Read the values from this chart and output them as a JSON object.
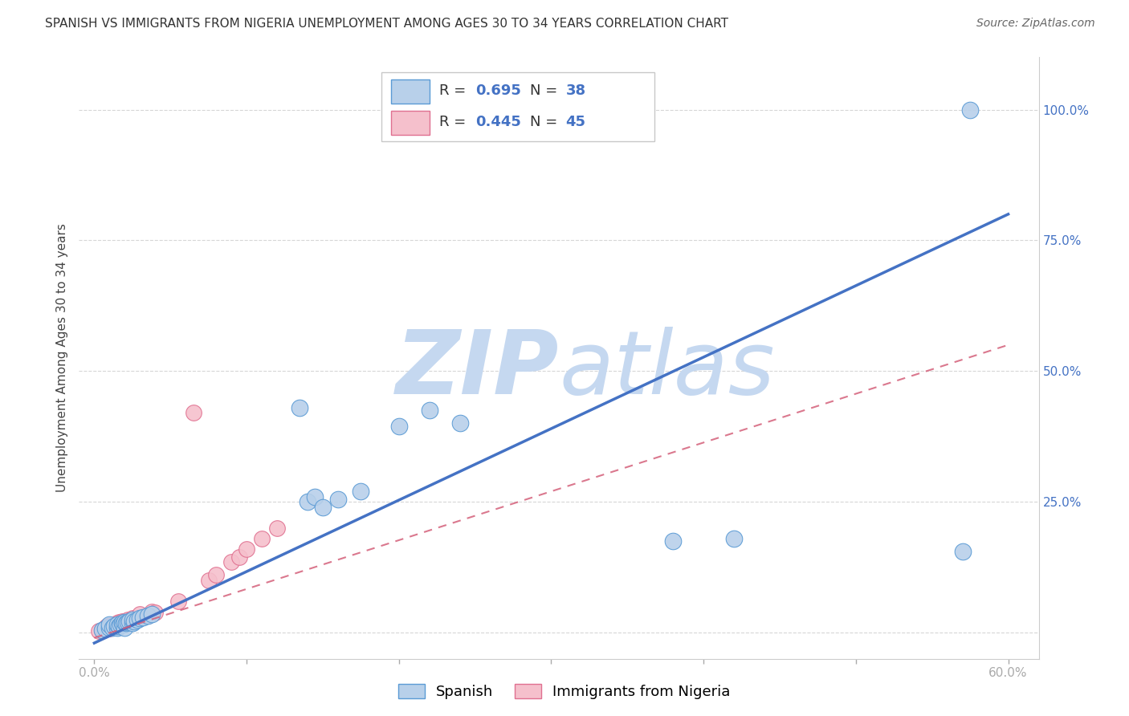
{
  "title": "SPANISH VS IMMIGRANTS FROM NIGERIA UNEMPLOYMENT AMONG AGES 30 TO 34 YEARS CORRELATION CHART",
  "source": "Source: ZipAtlas.com",
  "ylabel": "Unemployment Among Ages 30 to 34 years",
  "spanish_R": 0.695,
  "spanish_N": 38,
  "nigeria_R": 0.445,
  "nigeria_N": 45,
  "spanish_color": "#b8d0ea",
  "nigeria_color": "#f5c0cc",
  "spanish_edge_color": "#5b9bd5",
  "nigeria_edge_color": "#e07090",
  "spanish_line_color": "#4472c4",
  "nigeria_line_color": "#d4607a",
  "watermark_color": "#c5d8f0",
  "legend_label_spanish": "Spanish",
  "legend_label_nigeria": "Immigrants from Nigeria",
  "legend_R_color": "#333333",
  "legend_N_color": "#4472c4",
  "spanish_x": [
    0.005,
    0.007,
    0.01,
    0.01,
    0.012,
    0.013,
    0.015,
    0.015,
    0.016,
    0.017,
    0.018,
    0.019,
    0.02,
    0.02,
    0.021,
    0.022,
    0.023,
    0.025,
    0.025,
    0.026,
    0.028,
    0.03,
    0.032,
    0.035,
    0.038,
    0.14,
    0.145,
    0.15,
    0.16,
    0.175,
    0.2,
    0.22,
    0.24,
    0.38,
    0.42,
    0.135,
    0.57,
    0.575
  ],
  "spanish_y": [
    0.005,
    0.008,
    0.01,
    0.015,
    0.01,
    0.012,
    0.01,
    0.015,
    0.012,
    0.015,
    0.018,
    0.015,
    0.01,
    0.02,
    0.018,
    0.02,
    0.022,
    0.018,
    0.025,
    0.022,
    0.025,
    0.028,
    0.03,
    0.032,
    0.035,
    0.25,
    0.26,
    0.24,
    0.255,
    0.27,
    0.395,
    0.425,
    0.4,
    0.175,
    0.18,
    0.43,
    0.155,
    1.0
  ],
  "nigeria_x": [
    0.003,
    0.005,
    0.006,
    0.007,
    0.007,
    0.008,
    0.008,
    0.009,
    0.01,
    0.01,
    0.01,
    0.011,
    0.012,
    0.012,
    0.013,
    0.014,
    0.014,
    0.015,
    0.015,
    0.016,
    0.016,
    0.017,
    0.018,
    0.018,
    0.02,
    0.02,
    0.022,
    0.022,
    0.025,
    0.025,
    0.028,
    0.03,
    0.03,
    0.035,
    0.038,
    0.04,
    0.055,
    0.075,
    0.08,
    0.09,
    0.095,
    0.1,
    0.11,
    0.12,
    0.065
  ],
  "nigeria_y": [
    0.003,
    0.005,
    0.005,
    0.006,
    0.01,
    0.008,
    0.012,
    0.008,
    0.01,
    0.013,
    0.008,
    0.01,
    0.01,
    0.015,
    0.012,
    0.012,
    0.016,
    0.013,
    0.018,
    0.015,
    0.02,
    0.016,
    0.018,
    0.022,
    0.018,
    0.022,
    0.02,
    0.025,
    0.022,
    0.028,
    0.025,
    0.028,
    0.035,
    0.032,
    0.04,
    0.038,
    0.06,
    0.1,
    0.11,
    0.135,
    0.145,
    0.16,
    0.18,
    0.2,
    0.42
  ],
  "spanish_line_x0": 0.0,
  "spanish_line_x1": 0.6,
  "spanish_line_y0": -0.02,
  "spanish_line_y1": 0.8,
  "nigeria_line_x0": 0.0,
  "nigeria_line_x1": 0.6,
  "nigeria_line_y0": -0.01,
  "nigeria_line_y1": 0.55,
  "xlim_min": -0.01,
  "xlim_max": 0.62,
  "ylim_min": -0.05,
  "ylim_max": 1.1,
  "xtick_positions": [
    0.0,
    0.1,
    0.2,
    0.3,
    0.4,
    0.5,
    0.6
  ],
  "xtick_labels": [
    "0.0%",
    "",
    "",
    "",
    "",
    "",
    "60.0%"
  ],
  "ytick_positions": [
    0.0,
    0.25,
    0.5,
    0.75,
    1.0
  ],
  "ytick_labels": [
    "",
    "25.0%",
    "50.0%",
    "75.0%",
    "100.0%"
  ],
  "grid_color": "#cccccc",
  "spine_color": "#cccccc",
  "tick_color": "#aaaaaa",
  "title_fontsize": 11,
  "axis_label_fontsize": 11,
  "tick_fontsize": 11,
  "source_fontsize": 10
}
